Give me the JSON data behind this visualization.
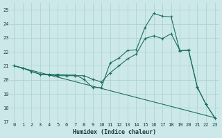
{
  "xlabel": "Humidex (Indice chaleur)",
  "background_color": "#cde8e8",
  "grid_color": "#add4d4",
  "line_color": "#1a6e62",
  "xlim": [
    -0.5,
    23.5
  ],
  "ylim": [
    17,
    25.5
  ],
  "yticks": [
    17,
    18,
    19,
    20,
    21,
    22,
    23,
    24,
    25
  ],
  "xticks": [
    0,
    1,
    2,
    3,
    4,
    5,
    6,
    7,
    8,
    9,
    10,
    11,
    12,
    13,
    14,
    15,
    16,
    17,
    18,
    19,
    20,
    21,
    22,
    23
  ],
  "line1_x": [
    0,
    1,
    2,
    3,
    4,
    5,
    6,
    7,
    8,
    9,
    10,
    11,
    12,
    13,
    14,
    15,
    16,
    17,
    18,
    19,
    20,
    21,
    22,
    23
  ],
  "line1_y": [
    21.0,
    20.85,
    20.6,
    20.4,
    20.4,
    20.4,
    20.35,
    20.35,
    20.05,
    19.45,
    19.45,
    21.2,
    21.55,
    22.1,
    22.15,
    23.75,
    24.75,
    24.55,
    24.5,
    22.05,
    22.15,
    19.5,
    18.25,
    17.3
  ],
  "line2_x": [
    0,
    1,
    2,
    3,
    4,
    5,
    6,
    7,
    8,
    9,
    10,
    11,
    12,
    13,
    14,
    15,
    16,
    17,
    18,
    19,
    20,
    21,
    22,
    23
  ],
  "line2_y": [
    21.0,
    20.85,
    20.6,
    20.4,
    20.35,
    20.3,
    20.3,
    20.3,
    20.3,
    20.05,
    19.85,
    20.5,
    21.0,
    21.5,
    21.85,
    22.95,
    23.15,
    22.95,
    23.3,
    22.1,
    22.1,
    19.45,
    18.25,
    17.3
  ],
  "line3_x": [
    0,
    23
  ],
  "line3_y": [
    21.0,
    17.3
  ],
  "marker_x": [
    0,
    1,
    2,
    3,
    4,
    5,
    6,
    7,
    8,
    9,
    10,
    11,
    12,
    13,
    14,
    15,
    16,
    17,
    18,
    19,
    20,
    21,
    22,
    23
  ],
  "marker1_y": [
    21.0,
    20.85,
    20.6,
    20.4,
    20.4,
    20.4,
    20.35,
    20.35,
    20.05,
    19.45,
    19.45,
    21.2,
    21.55,
    22.1,
    22.15,
    23.75,
    24.75,
    24.55,
    24.5,
    22.05,
    22.15,
    19.5,
    18.25,
    17.3
  ],
  "marker2_y": [
    21.0,
    20.85,
    20.6,
    20.4,
    20.35,
    20.3,
    20.3,
    20.3,
    20.3,
    20.05,
    19.85,
    20.5,
    21.0,
    21.5,
    21.85,
    22.95,
    23.15,
    22.95,
    23.3,
    22.1,
    22.1,
    19.45,
    18.25,
    17.3
  ]
}
